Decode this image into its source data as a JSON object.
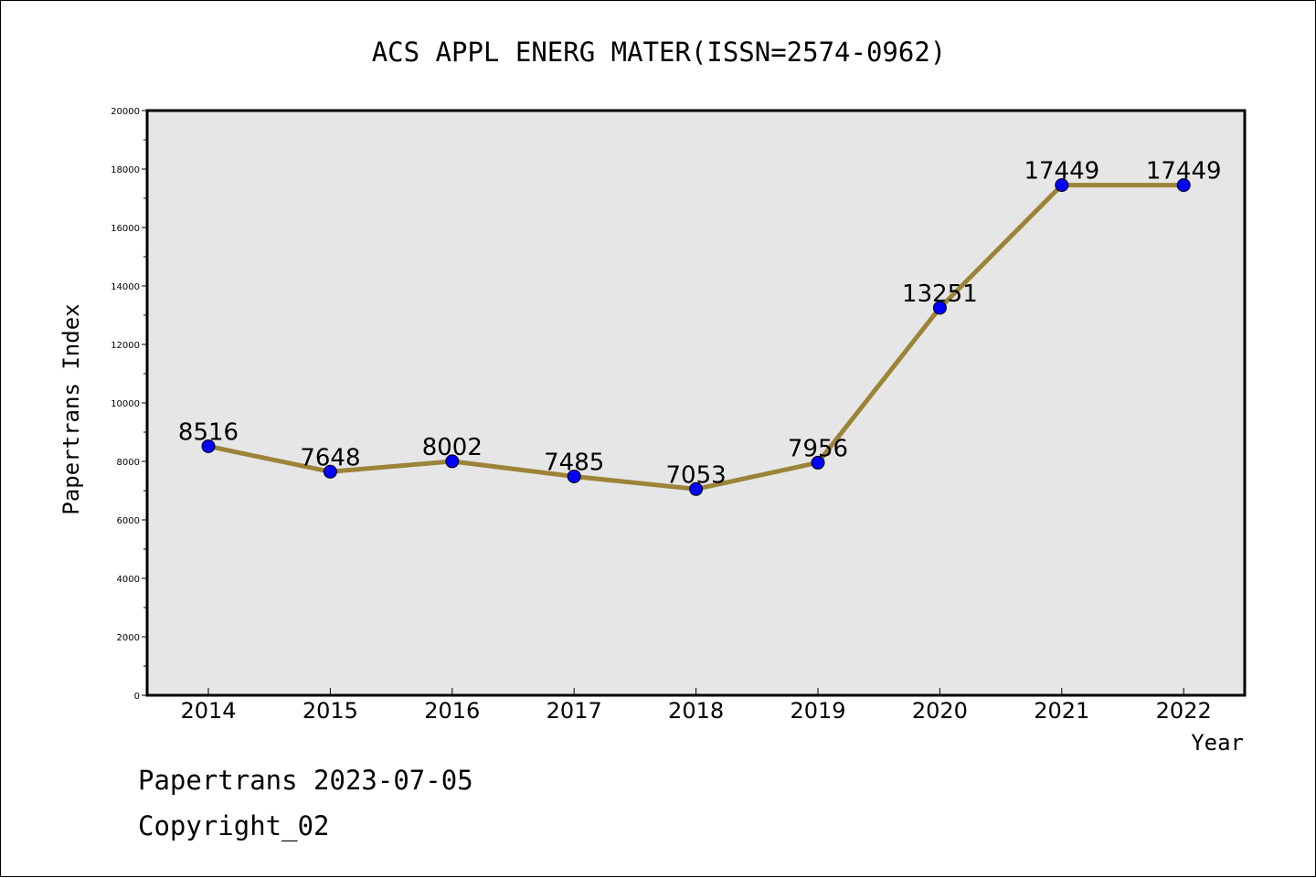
{
  "chart_data": {
    "type": "line",
    "title": "ACS APPL ENERG MATER(ISSN=2574-0962)",
    "xlabel": "Year",
    "ylabel": "Papertrans Index",
    "categories": [
      "2014",
      "2015",
      "2016",
      "2017",
      "2018",
      "2019",
      "2020",
      "2021",
      "2022"
    ],
    "series": [
      {
        "values": [
          8516,
          7648,
          8002,
          7485,
          7053,
          7956,
          13251,
          17449,
          17449
        ]
      }
    ],
    "data_labels": [
      "8516",
      "7648",
      "8002",
      "7485",
      "7053",
      "7956",
      "13251",
      "17449",
      "17449"
    ],
    "ylim": [
      0,
      20000
    ],
    "y_ticks": [
      "0",
      "2000",
      "4000",
      "6000",
      "8000",
      "10000",
      "12000",
      "14000",
      "16000",
      "18000",
      "20000"
    ],
    "grid": false,
    "legend": "none",
    "colors": {
      "line": "#9B8438",
      "marker": "#0000FF",
      "marker_edge": "#000000",
      "plot_background": "#E6E6E6",
      "axes": "#000000"
    }
  },
  "footer": {
    "line1": "Papertrans 2023-07-05",
    "line2": "Copyright_02"
  }
}
